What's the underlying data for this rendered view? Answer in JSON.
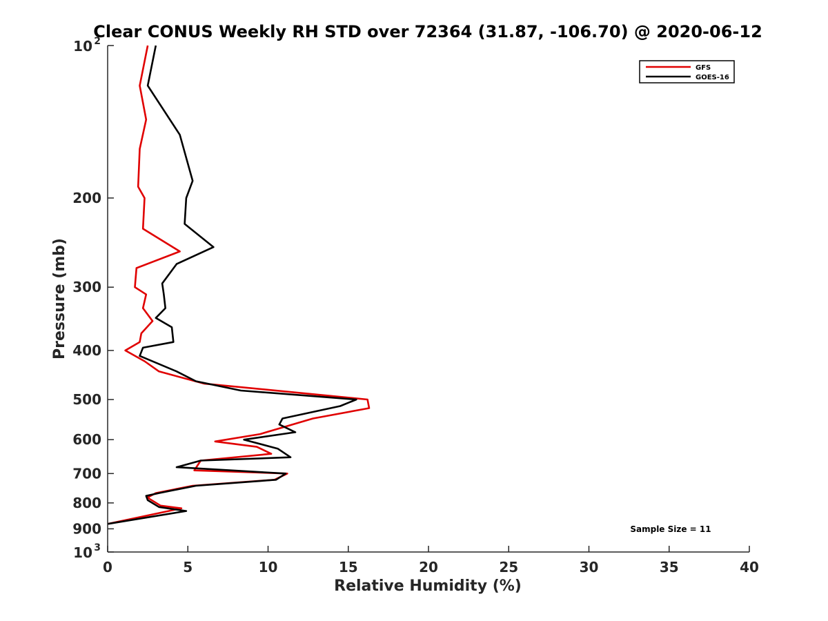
{
  "chart_data": {
    "type": "line",
    "title": "Clear CONUS Weekly RH STD over 72364 (31.87, -106.70) @ 2020-06-12",
    "xlabel": "Relative Humidity (%)",
    "ylabel": "Pressure (mb)",
    "xlim": [
      0,
      40
    ],
    "ylim": [
      100,
      1000
    ],
    "y_scale": "log",
    "y_reversed": true,
    "grid": false,
    "legend_position": "top-right",
    "xticks": [
      0,
      5,
      10,
      15,
      20,
      25,
      30,
      35,
      40
    ],
    "xtick_labels": [
      "0",
      "5",
      "10",
      "15",
      "20",
      "25",
      "30",
      "35",
      "40"
    ],
    "yticks": [
      {
        "value": 100,
        "base": "10",
        "exp": "2"
      },
      {
        "value": 200,
        "label": "200"
      },
      {
        "value": 300,
        "label": "300"
      },
      {
        "value": 400,
        "label": "400"
      },
      {
        "value": 500,
        "label": "500"
      },
      {
        "value": 600,
        "label": "600"
      },
      {
        "value": 700,
        "label": "700"
      },
      {
        "value": 800,
        "label": "800"
      },
      {
        "value": 900,
        "label": "900"
      },
      {
        "value": 1000,
        "base": "10",
        "exp": "3"
      }
    ],
    "annotation": "Sample Size = 11",
    "series": [
      {
        "name": "GFS",
        "color": "#e00000",
        "x": [
          2.5,
          2.0,
          2.4,
          2.0,
          1.9,
          2.3,
          2.2,
          4.5,
          1.8,
          1.7,
          2.4,
          2.2,
          2.8,
          2.1,
          2.0,
          1.1,
          2.3,
          3.2,
          6.0,
          16.2,
          16.3,
          12.8,
          9.5,
          6.7,
          9.3,
          10.2,
          5.8,
          5.4,
          11.2,
          10.4,
          5.3,
          3.0,
          2.5,
          2.6,
          3.3,
          4.6,
          3.8,
          0
        ],
        "y": [
          100,
          120,
          140,
          160,
          190,
          200,
          230,
          255,
          275,
          300,
          310,
          330,
          350,
          370,
          385,
          400,
          420,
          440,
          465,
          500,
          520,
          545,
          585,
          605,
          620,
          640,
          660,
          690,
          700,
          720,
          740,
          765,
          780,
          785,
          810,
          820,
          830,
          880
        ]
      },
      {
        "name": "GOES-16",
        "color": "#000000",
        "x": [
          3.0,
          2.5,
          4.5,
          5.3,
          4.9,
          4.8,
          6.6,
          4.3,
          3.4,
          3.5,
          3.6,
          3.0,
          4.0,
          4.1,
          2.2,
          2.0,
          4.3,
          5.5,
          8.3,
          15.5,
          14.5,
          10.9,
          10.7,
          11.7,
          8.5,
          10.6,
          11.4,
          5.8,
          4.3,
          11.1,
          10.5,
          5.5,
          3.2,
          2.4,
          2.5,
          3.2,
          4.9,
          0
        ],
        "y": [
          100,
          120,
          150,
          185,
          200,
          225,
          250,
          270,
          295,
          310,
          330,
          345,
          360,
          385,
          395,
          410,
          440,
          460,
          480,
          500,
          515,
          545,
          560,
          580,
          600,
          625,
          650,
          660,
          680,
          700,
          720,
          740,
          765,
          775,
          790,
          815,
          830,
          880
        ]
      }
    ]
  }
}
